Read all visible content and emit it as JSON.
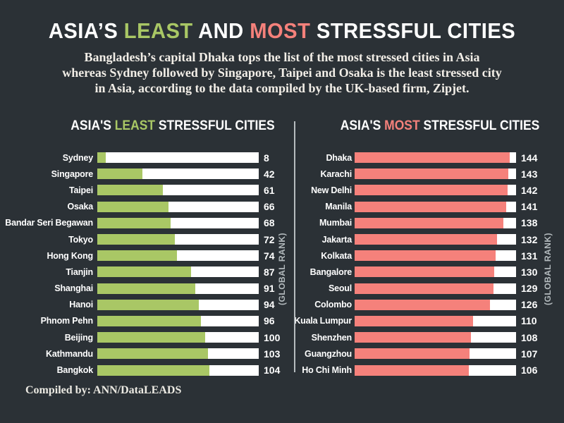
{
  "title": {
    "pre": "ASIA’S ",
    "least": "LEAST",
    "and": " AND ",
    "most": "MOST",
    "post": " STRESSFUL CITIES"
  },
  "subtitle_lines": [
    "Bangladesh’s capital Dhaka tops the list of the most stressed cities in Asia",
    "whereas Sydney followed by Singapore, Taipei and Osaka is the least stressed city",
    "in Asia, according to the data compiled by the UK-based  firm, Zipjet."
  ],
  "footer": "Compiled by: ANN/DataLEADS",
  "colors": {
    "background": "#2b3136",
    "green_accent": "#a9c765",
    "red_accent": "#f5817b",
    "bar_track": "#ffffff",
    "text": "#ffffff"
  },
  "chart_data": [
    {
      "type": "bar",
      "orientation": "horizontal",
      "title": "ASIA'S LEAST STRESSFUL CITIES",
      "header_parts": [
        "ASIA'S ",
        "LEAST",
        " STRESSFUL CITIES"
      ],
      "axis_note": "(GLOBAL RANK)",
      "bar_color": "#a9c765",
      "track_color": "#ffffff",
      "xlim": [
        0,
        150
      ],
      "categories": [
        "Sydney",
        "Singapore",
        "Taipei",
        "Osaka",
        "Bandar Seri Begawan",
        "Tokyo",
        "Hong Kong",
        "Tianjin",
        "Shanghai",
        "Hanoi",
        "Phnom Pehn",
        "Beijing",
        "Kathmandu",
        "Bangkok"
      ],
      "values": [
        8,
        42,
        61,
        66,
        68,
        72,
        74,
        87,
        91,
        94,
        96,
        100,
        103,
        104
      ]
    },
    {
      "type": "bar",
      "orientation": "horizontal",
      "title": "ASIA'S MOST STRESSFUL CITIES",
      "header_parts": [
        "ASIA'S ",
        "MOST",
        " STRESSFUL CITIES"
      ],
      "axis_note": "(GLOBAL RANK)",
      "bar_color": "#f5817b",
      "track_color": "#ffffff",
      "xlim": [
        0,
        150
      ],
      "categories": [
        "Dhaka",
        "Karachi",
        "New Delhi",
        "Manila",
        "Mumbai",
        "Jakarta",
        "Kolkata",
        "Bangalore",
        "Seoul",
        "Colombo",
        "Kuala Lumpur",
        "Shenzhen",
        "Guangzhou",
        "Ho Chi Minh"
      ],
      "values": [
        144,
        143,
        142,
        141,
        138,
        132,
        131,
        130,
        129,
        126,
        110,
        108,
        107,
        106
      ]
    }
  ]
}
